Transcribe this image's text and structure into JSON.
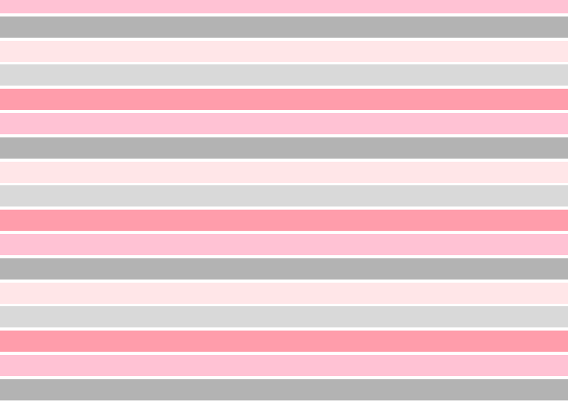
{
  "pattern": {
    "name": "horizontal-stripes",
    "background": "#ffffff",
    "colors": [
      "#ffc2d4",
      "#b3b3b3",
      "#ffe6e8",
      "#d9d9d9",
      "#ff9dab"
    ],
    "stripe_count": 17
  }
}
